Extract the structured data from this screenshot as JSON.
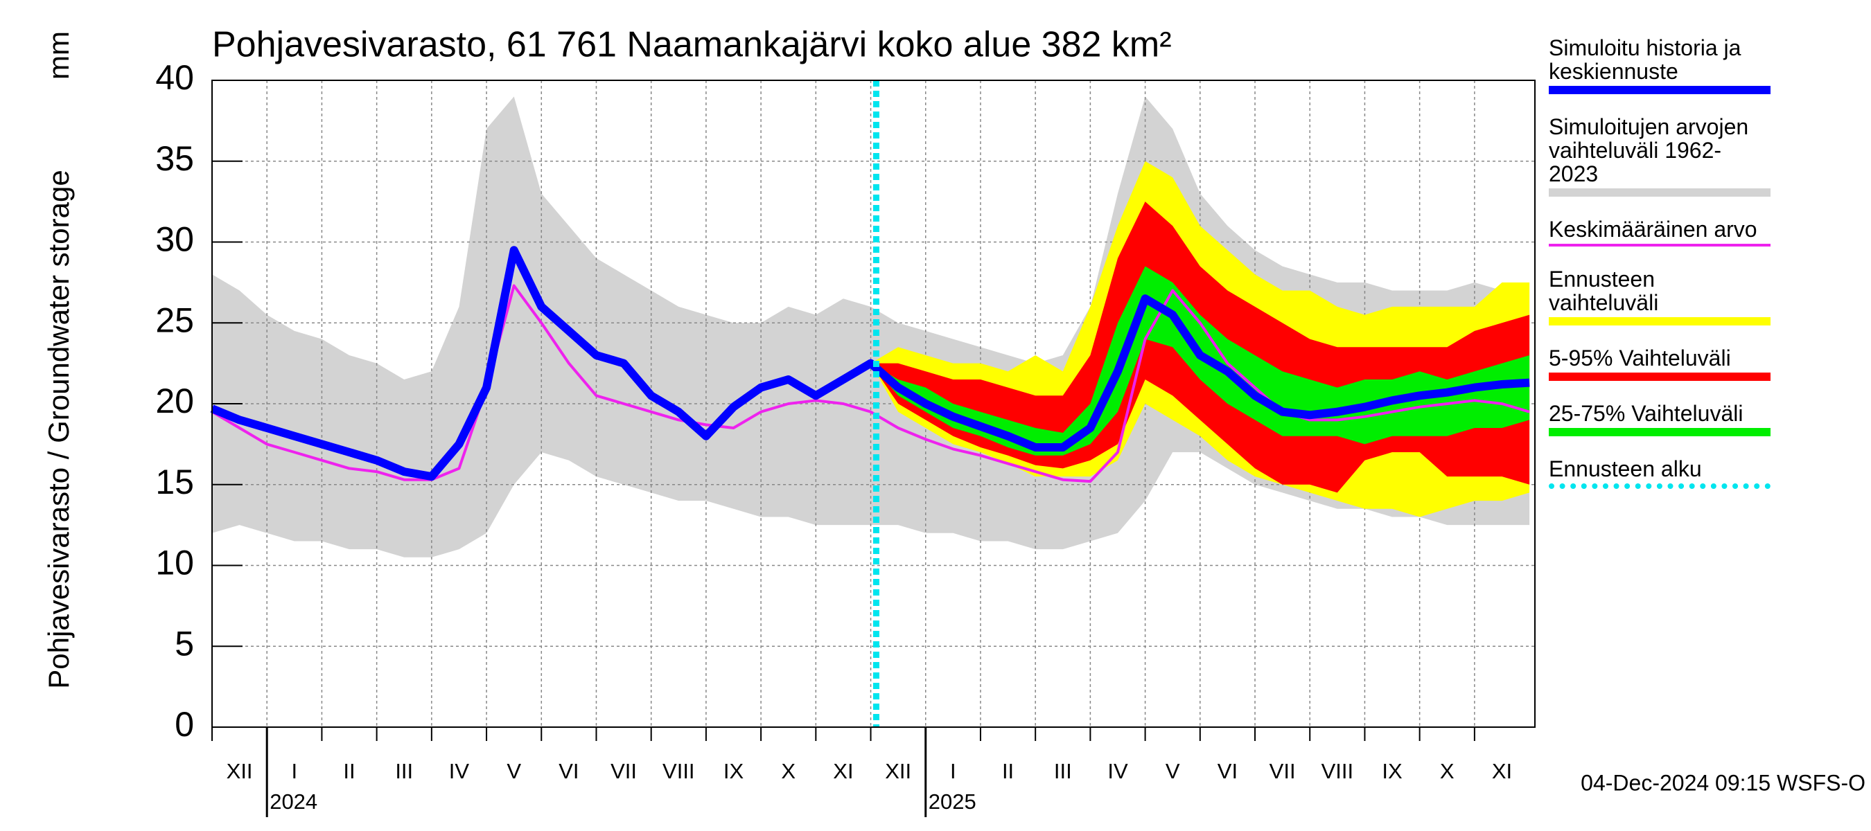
{
  "chart_data": {
    "type": "band-line",
    "title": "Pohjavesivarasto, 61 761 Naamankajärvi koko alue 382 km²",
    "ylabel": "Pohjavesivarasto / Groundwater storage",
    "yunit": "mm",
    "footer": "04-Dec-2024 09:15 WSFS-O",
    "months": [
      "XII",
      "I",
      "II",
      "III",
      "IV",
      "V",
      "VI",
      "VII",
      "VIII",
      "IX",
      "X",
      "XI",
      "XII",
      "I",
      "II",
      "III",
      "IV",
      "V",
      "VI",
      "VII",
      "VIII",
      "IX",
      "X",
      "XI"
    ],
    "years": [
      "2024",
      "2025"
    ],
    "xlim": [
      0,
      24.1
    ],
    "ylim": [
      0,
      40
    ],
    "yticks": [
      0,
      5,
      10,
      15,
      20,
      25,
      30,
      35,
      40
    ],
    "grid": true,
    "x": [
      0,
      0.5,
      1,
      1.5,
      2,
      2.5,
      3,
      3.5,
      4,
      4.5,
      5,
      5.5,
      6,
      6.5,
      7,
      7.5,
      8,
      8.5,
      9,
      9.5,
      10,
      10.5,
      11,
      11.5,
      12,
      12.5,
      13,
      13.5,
      14,
      14.5,
      15,
      15.5,
      16,
      16.5,
      17,
      17.5,
      18,
      18.5,
      19,
      19.5,
      20,
      20.5,
      21,
      21.5,
      22,
      22.5,
      23,
      23.5,
      24
    ],
    "series": [
      {
        "name": "Simuloitu historia ja\nkeskiennuste",
        "kind": "line",
        "color": "#0000ff",
        "width": 12,
        "values": [
          19.7,
          19,
          18.5,
          18,
          17.5,
          17,
          16.5,
          15.8,
          15.5,
          17.5,
          21,
          29.5,
          26,
          24.5,
          23,
          22.5,
          20.5,
          19.5,
          18,
          19.8,
          21,
          21.5,
          20.5,
          21.5,
          22.5,
          21,
          20,
          19.2,
          18.6,
          18,
          17.3,
          17.3,
          18.5,
          22,
          26.5,
          25.5,
          23,
          22,
          20.5,
          19.5,
          19.3,
          19.5,
          19.8,
          20.2,
          20.5,
          20.7,
          21,
          21.2,
          21.3
        ]
      },
      {
        "name": "Simuloitujen arvojen\nvaihteluväli 1962-2023",
        "kind": "band",
        "color": "#d3d3d3",
        "upper": [
          28,
          27,
          25.5,
          24.5,
          24,
          23,
          22.5,
          21.5,
          22,
          26,
          37,
          39,
          33,
          31,
          29,
          28,
          27,
          26,
          25.5,
          25,
          25,
          26,
          25.5,
          26.5,
          26,
          25,
          24.5,
          24,
          23.5,
          23,
          22.5,
          23,
          26,
          33,
          39,
          37,
          33,
          31,
          29.5,
          28.5,
          28,
          27.5,
          27.5,
          27,
          27,
          27,
          27.5,
          27,
          27.5
        ],
        "lower": [
          12,
          12.5,
          12,
          11.5,
          11.5,
          11,
          11,
          10.5,
          10.5,
          11,
          12,
          15,
          17,
          16.5,
          15.5,
          15,
          14.5,
          14,
          14,
          13.5,
          13,
          13,
          12.5,
          12.5,
          12.5,
          12.5,
          12,
          12,
          11.5,
          11.5,
          11,
          11,
          11.5,
          12,
          14,
          17,
          17,
          16,
          15,
          14.5,
          14,
          13.5,
          13.5,
          13,
          13,
          12.5,
          12.5,
          12.5,
          12.5
        ]
      },
      {
        "name": "Keskimääräinen arvo",
        "kind": "line",
        "color": "#ee22ee",
        "width": 4,
        "values": [
          19.5,
          18.5,
          17.5,
          17,
          16.5,
          16,
          15.8,
          15.3,
          15.3,
          16,
          21,
          27.3,
          25,
          22.5,
          20.5,
          20,
          19.5,
          19,
          18.7,
          18.5,
          19.5,
          20,
          20.2,
          20,
          19.5,
          18.5,
          17.8,
          17.2,
          16.8,
          16.3,
          15.8,
          15.3,
          15.2,
          17,
          24,
          27,
          25,
          22.5,
          21,
          19.5,
          19,
          19,
          19.2,
          19.5,
          19.8,
          20,
          20.2,
          20,
          19.5
        ]
      },
      {
        "name": "Ennusteen vaihteluväli",
        "kind": "band",
        "color": "#ffff00",
        "upper": [
          null,
          null,
          null,
          null,
          null,
          null,
          null,
          null,
          null,
          null,
          null,
          null,
          null,
          null,
          null,
          null,
          null,
          null,
          null,
          null,
          null,
          null,
          null,
          null,
          22.5,
          23.5,
          23,
          22.5,
          22.5,
          22,
          23,
          22,
          26,
          31,
          35,
          34,
          31,
          29.5,
          28,
          27,
          27,
          26,
          25.5,
          26,
          26,
          26,
          26,
          27.5,
          27.5
        ],
        "lower": [
          null,
          null,
          null,
          null,
          null,
          null,
          null,
          null,
          null,
          null,
          null,
          null,
          null,
          null,
          null,
          null,
          null,
          null,
          null,
          null,
          null,
          null,
          null,
          null,
          22.5,
          19.5,
          18.5,
          17.5,
          17,
          16.3,
          15.5,
          15.5,
          15.5,
          16.5,
          20,
          19,
          18,
          16.5,
          15.5,
          15,
          14.5,
          14,
          13.5,
          13.5,
          13,
          13.5,
          14,
          14,
          14.5
        ]
      },
      {
        "name": "5-95% Vaihteluväli",
        "kind": "band",
        "color": "#ff0000",
        "upper": [
          null,
          null,
          null,
          null,
          null,
          null,
          null,
          null,
          null,
          null,
          null,
          null,
          null,
          null,
          null,
          null,
          null,
          null,
          null,
          null,
          null,
          null,
          null,
          null,
          22.5,
          22.5,
          22,
          21.5,
          21.5,
          21,
          20.5,
          20.5,
          23,
          29,
          32.5,
          31,
          28.5,
          27,
          26,
          25,
          24,
          23.5,
          23.5,
          23.5,
          23.5,
          23.5,
          24.5,
          25,
          25.5
        ],
        "lower": [
          null,
          null,
          null,
          null,
          null,
          null,
          null,
          null,
          null,
          null,
          null,
          null,
          null,
          null,
          null,
          null,
          null,
          null,
          null,
          null,
          null,
          null,
          null,
          null,
          22.5,
          20,
          19,
          18,
          17.3,
          16.8,
          16.2,
          16,
          16.5,
          17.5,
          21.5,
          20.5,
          19,
          17.5,
          16,
          15,
          15,
          14.5,
          16.5,
          17,
          17,
          15.5,
          15.5,
          15.5,
          15
        ]
      },
      {
        "name": "25-75% Vaihteluväli",
        "kind": "band",
        "color": "#00ee00",
        "upper": [
          null,
          null,
          null,
          null,
          null,
          null,
          null,
          null,
          null,
          null,
          null,
          null,
          null,
          null,
          null,
          null,
          null,
          null,
          null,
          null,
          null,
          null,
          null,
          null,
          22.5,
          21.5,
          21,
          20,
          19.5,
          19,
          18.5,
          18.2,
          20,
          25,
          28.5,
          27.5,
          25.5,
          24,
          23,
          22,
          21.5,
          21,
          21.5,
          21.5,
          22,
          21.5,
          22,
          22.5,
          23
        ],
        "lower": [
          null,
          null,
          null,
          null,
          null,
          null,
          null,
          null,
          null,
          null,
          null,
          null,
          null,
          null,
          null,
          null,
          null,
          null,
          null,
          null,
          null,
          null,
          null,
          null,
          22.5,
          20.5,
          19.5,
          18.5,
          18,
          17.3,
          16.8,
          16.8,
          17.5,
          19.5,
          24,
          23.5,
          21.5,
          20,
          19,
          18,
          18,
          18,
          17.5,
          18,
          18,
          18,
          18.5,
          18.5,
          19
        ]
      }
    ],
    "forecast_start": {
      "name": "Ennusteen alku",
      "color": "#00e5ee",
      "x": 12.1
    }
  }
}
